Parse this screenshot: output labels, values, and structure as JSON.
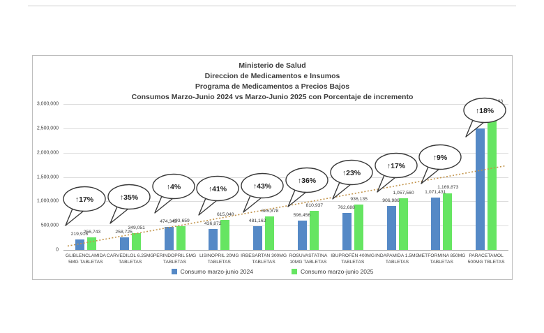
{
  "chart_data": {
    "type": "bar",
    "title_lines": [
      "Ministerio de Salud",
      "Direccion de Medicamentos e Insumos",
      "Programa de Medicamentos a Precios Bajos",
      "Consumos Marzo-Junio 2024 vs Marzo-Junio 2025 con Porcentaje de incremento"
    ],
    "categories": [
      [
        "GLIBLENCLAMIDA",
        "5MG TABLETAS"
      ],
      [
        "CARVEDILOL 6.25MG",
        "TABLETAS"
      ],
      [
        "PERINDOPRIL 5MG",
        "TABLETAS"
      ],
      [
        "LISINOPRIL 20MG",
        "TABLETAS"
      ],
      [
        "IRBESARTAN 300MG",
        "TABLETAS"
      ],
      [
        "ROSUVASTATINA",
        "10MG TABLETAS"
      ],
      [
        "IBUPROFÉN 400MG",
        "TABLETAS"
      ],
      [
        "INDAPAMIDA 1.5MG",
        "TABLETAS"
      ],
      [
        "METFORMINA 850MG",
        "TABLETAS"
      ],
      [
        "PARACETAMOL",
        "500MG TBLETAS"
      ]
    ],
    "series": [
      {
        "name": "Consumo marzo-junio 2024",
        "color": "#5589c6",
        "values": [
          219916,
          258725,
          474342,
          436872,
          481162,
          596456,
          762688,
          906986,
          1071431,
          2498000
        ],
        "labels": [
          "219,916",
          "258,725",
          "474,342",
          "436,872",
          "481,162",
          "596,456",
          "762,688",
          "906,986",
          "1,071,431",
          ""
        ]
      },
      {
        "name": "Consumo marzo-junio 2025",
        "color": "#66e562",
        "values": [
          256743,
          349051,
          493659,
          615048,
          685878,
          810937,
          936135,
          1057560,
          1169873,
          2947663
        ],
        "labels": [
          "256,743",
          "349,051",
          "493,659",
          "615,048",
          "685,878",
          "810,937",
          "936,135",
          "1,057,560",
          "1,169,873",
          "2,947,663"
        ]
      }
    ],
    "increments": [
      "↑17%",
      "↑35%",
      "↑4%",
      "↑41%",
      "↑43%",
      "↑36%",
      "↑23%",
      "↑17%",
      "↑9%",
      "↑18%"
    ],
    "y_ticks": [
      {
        "value": 0,
        "label": "0"
      },
      {
        "value": 500000,
        "label": "500,000"
      },
      {
        "value": 1000000,
        "label": "1,000,000"
      },
      {
        "value": 1500000,
        "label": "1,500,000"
      },
      {
        "value": 2000000,
        "label": "2,000,000"
      },
      {
        "value": 2500000,
        "label": "2,500,000"
      },
      {
        "value": 3000000,
        "label": "3,000,000"
      }
    ],
    "ylim": [
      0,
      3000000
    ],
    "grid": true,
    "legend_position": "bottom",
    "trendline": {
      "start": 80000,
      "end": 1730000,
      "color": "#c2944b",
      "style": "dotted"
    }
  },
  "colors": {
    "grid": "#dcdcdc",
    "axis": "#a6a6a6",
    "text": "#3d3d3d",
    "frame_border": "#bdbdbd",
    "balloon_outline": "#3a3a3a"
  }
}
